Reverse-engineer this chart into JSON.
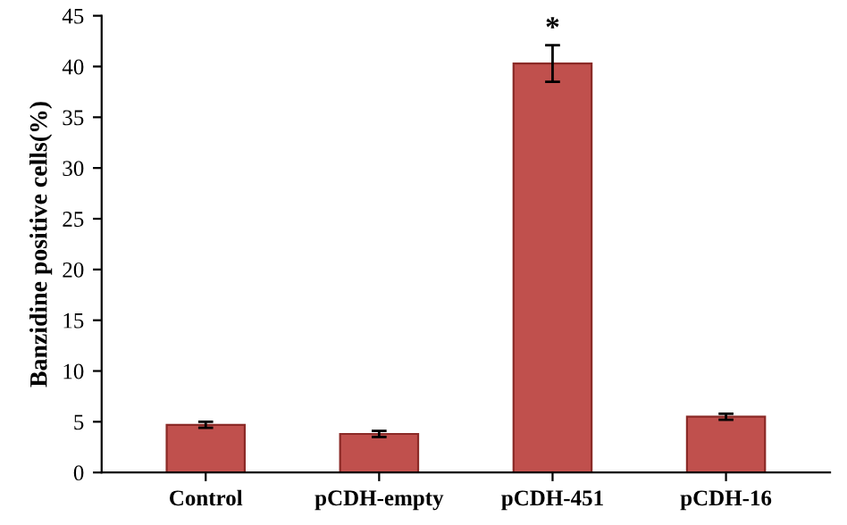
{
  "chart_data": {
    "type": "bar",
    "ylabel": "Banzidine positive cells(%)",
    "categories": [
      "Control",
      "pCDH-empty",
      "pCDH-451",
      "pCDH-16"
    ],
    "values": [
      4.7,
      3.8,
      40.3,
      5.5
    ],
    "errors": [
      0.3,
      0.3,
      1.8,
      0.3
    ],
    "color": "#c0504d",
    "ylim": [
      0,
      45
    ],
    "yticks": [
      0,
      5,
      10,
      15,
      20,
      25,
      30,
      35,
      40,
      45
    ],
    "annotations": [
      {
        "text": "*",
        "x": "pCDH-451",
        "y": 42.3
      }
    ],
    "grid": false,
    "legend": false
  }
}
